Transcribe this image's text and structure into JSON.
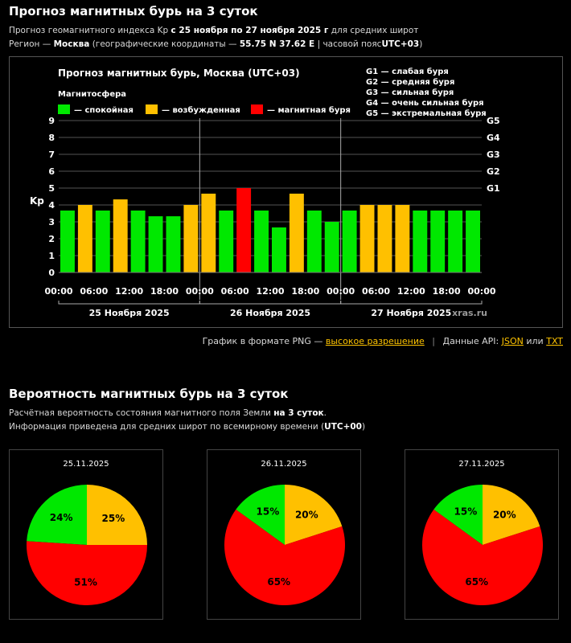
{
  "header": {
    "title": "Прогноз магнитных бурь на 3 суток",
    "line1_prefix": "Прогноз геомагнитного индекса Kp",
    "line1_bold": "с 25 ноября по 27 ноября 2025 г",
    "line1_suffix": "для средних широт",
    "line2_prefix": "Регион —",
    "line2_city": "Москва",
    "line2_mid": "(географические координаты —",
    "line2_coords": "55.75 N 37.62 E",
    "line2_tz_prefix": "| часовой пояс",
    "line2_tz": "UTC+03",
    "line2_close": ")"
  },
  "links": {
    "png_prefix": "График в формате PNG —",
    "png_link": "высокое разрешение",
    "api_prefix": "Данные API:",
    "json_link": "JSON",
    "or_word": "или",
    "txt_link": "TXT"
  },
  "prob": {
    "title": "Вероятность магнитных бурь на 3 суток",
    "line1_prefix": "Расчётная вероятность состояния магнитного поля Земли",
    "line1_bold": "на 3 суток",
    "line1_suffix": ".",
    "line2_prefix": "Информация приведена для средних широт по всемирному времени (",
    "line2_bold": "UTC+00",
    "line2_suffix": ")"
  },
  "colors": {
    "quiet": "#00e800",
    "active": "#ffc000",
    "storm": "#ff0000"
  },
  "chart_data": [
    {
      "type": "bar",
      "title": "Прогноз магнитных бурь, Москва (UTC+03)",
      "legend_title": "Магнитосфера",
      "legend": [
        {
          "label": "— спокойная",
          "color": "#00e800"
        },
        {
          "label": "— возбужденная",
          "color": "#ffc000"
        },
        {
          "label": "— магнитная буря",
          "color": "#ff0000"
        }
      ],
      "g_legend": [
        "G1 — слабая буря",
        "G2 — средняя буря",
        "G3 — сильная буря",
        "G4 — очень сильная буря",
        "G5 — экстремальная буря"
      ],
      "ylabel": "Kp",
      "ylim": [
        0,
        9
      ],
      "yticks": [
        "0",
        "1",
        "2",
        "3",
        "4",
        "5",
        "6",
        "7",
        "8",
        "9"
      ],
      "g_ticks": [
        {
          "label": "G1",
          "value": 5
        },
        {
          "label": "G2",
          "value": 6
        },
        {
          "label": "G3",
          "value": 7
        },
        {
          "label": "G4",
          "value": 8
        },
        {
          "label": "G5",
          "value": 9
        }
      ],
      "xticks": [
        "00:00",
        "06:00",
        "12:00",
        "18:00",
        "00:00",
        "06:00",
        "12:00",
        "18:00",
        "00:00",
        "06:00",
        "12:00",
        "18:00",
        "00:00"
      ],
      "days": [
        "25 Ноября 2025",
        "26 Ноября 2025",
        "27 Ноября 2025"
      ],
      "watermark": "xras.ru",
      "values": [
        3.67,
        4.0,
        3.67,
        4.33,
        3.67,
        3.33,
        3.33,
        4.0,
        4.67,
        3.67,
        5.0,
        3.67,
        2.67,
        4.67,
        3.67,
        3.0,
        3.67,
        4.0,
        4.0,
        4.0,
        3.67,
        3.67,
        3.67,
        3.67
      ],
      "levels": [
        "quiet",
        "active",
        "quiet",
        "active",
        "quiet",
        "quiet",
        "quiet",
        "active",
        "active",
        "quiet",
        "storm",
        "quiet",
        "quiet",
        "active",
        "quiet",
        "quiet",
        "quiet",
        "active",
        "active",
        "active",
        "quiet",
        "quiet",
        "quiet",
        "quiet"
      ]
    },
    {
      "type": "pie",
      "date": "25.11.2025",
      "slices": [
        {
          "level": "quiet",
          "value": 24,
          "label": "24%"
        },
        {
          "level": "active",
          "value": 25,
          "label": "25%"
        },
        {
          "level": "storm",
          "value": 51,
          "label": "51%"
        }
      ]
    },
    {
      "type": "pie",
      "date": "26.11.2025",
      "slices": [
        {
          "level": "quiet",
          "value": 15,
          "label": "15%"
        },
        {
          "level": "active",
          "value": 20,
          "label": "20%"
        },
        {
          "level": "storm",
          "value": 65,
          "label": "65%"
        }
      ]
    },
    {
      "type": "pie",
      "date": "27.11.2025",
      "slices": [
        {
          "level": "quiet",
          "value": 15,
          "label": "15%"
        },
        {
          "level": "active",
          "value": 20,
          "label": "20%"
        },
        {
          "level": "storm",
          "value": 65,
          "label": "65%"
        }
      ]
    }
  ]
}
